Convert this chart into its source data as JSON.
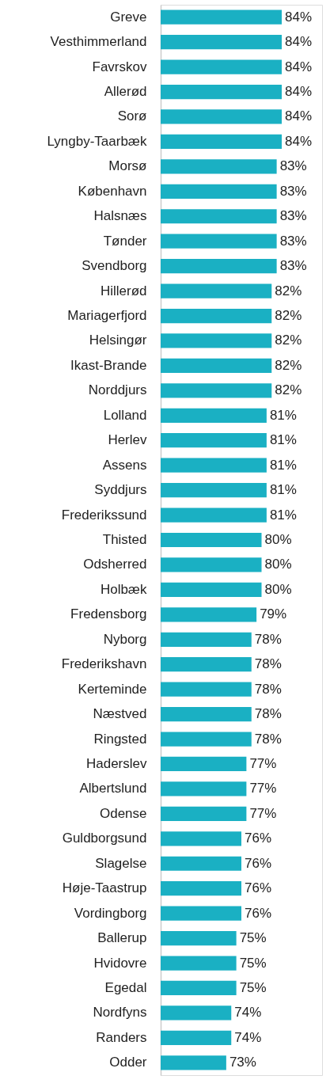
{
  "chart_data": {
    "type": "bar",
    "orientation": "horizontal",
    "categories": [
      "Greve",
      "Vesthimmerland",
      "Favrskov",
      "Allerød",
      "Sorø",
      "Lyngby-Taarbæk",
      "Morsø",
      "København",
      "Halsnæs",
      "Tønder",
      "Svendborg",
      "Hillerød",
      "Mariagerfjord",
      "Helsingør",
      "Ikast-Brande",
      "Norddjurs",
      "Lolland",
      "Herlev",
      "Assens",
      "Syddjurs",
      "Frederikssund",
      "Thisted",
      "Odsherred",
      "Holbæk",
      "Fredensborg",
      "Nyborg",
      "Frederikshavn",
      "Kerteminde",
      "Næstved",
      "Ringsted",
      "Haderslev",
      "Albertslund",
      "Odense",
      "Guldborgsund",
      "Slagelse",
      "Høje-Taastrup",
      "Vordingborg",
      "Ballerup",
      "Hvidovre",
      "Egedal",
      "Nordfyns",
      "Randers",
      "Odder"
    ],
    "values": [
      84,
      84,
      84,
      84,
      84,
      84,
      83,
      83,
      83,
      83,
      83,
      82,
      82,
      82,
      82,
      82,
      81,
      81,
      81,
      81,
      81,
      80,
      80,
      80,
      79,
      78,
      78,
      78,
      78,
      78,
      77,
      77,
      77,
      76,
      76,
      76,
      76,
      75,
      75,
      75,
      74,
      74,
      73
    ],
    "value_labels": [
      "84%",
      "84%",
      "84%",
      "84%",
      "84%",
      "84%",
      "83%",
      "83%",
      "83%",
      "83%",
      "83%",
      "82%",
      "82%",
      "82%",
      "82%",
      "82%",
      "81%",
      "81%",
      "81%",
      "81%",
      "81%",
      "80%",
      "80%",
      "80%",
      "79%",
      "78%",
      "78%",
      "78%",
      "78%",
      "78%",
      "77%",
      "77%",
      "77%",
      "76%",
      "76%",
      "76%",
      "76%",
      "75%",
      "75%",
      "75%",
      "74%",
      "74%",
      "73%"
    ],
    "color": "#1ab0c3",
    "xlim": [
      60,
      92
    ],
    "tick_labels": "y",
    "grid": false
  }
}
